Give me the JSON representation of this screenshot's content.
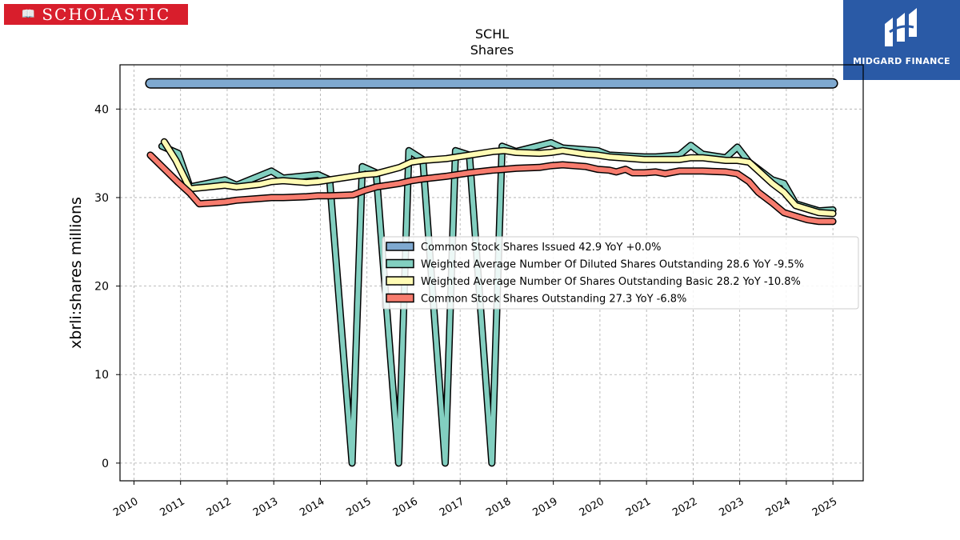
{
  "branding": {
    "left_logo_text": "SCHOLASTIC",
    "right_logo_text": "MIDGARD FINANCE"
  },
  "colors": {
    "issued": "#7fa9d0",
    "diluted": "#82cfc0",
    "basic": "#fffbb4",
    "outstanding": "#f77c6e"
  },
  "chart_data": {
    "type": "line",
    "title": "SCHL",
    "subtitle": "Shares",
    "ylabel": "xbrli:shares millions",
    "xlabel": "",
    "ylim": [
      -2,
      45
    ],
    "xlim": [
      2009.7,
      2025.65
    ],
    "yticks": [
      0,
      10,
      20,
      30,
      40
    ],
    "xticks": [
      "2010",
      "2011",
      "2012",
      "2013",
      "2014",
      "2015",
      "2016",
      "2017",
      "2018",
      "2019",
      "2020",
      "2021",
      "2022",
      "2023",
      "2024",
      "2025"
    ],
    "grid": true,
    "legend_position": "center-right",
    "series": [
      {
        "name": "Common Stock Shares Issued",
        "legend_label": "Common Stock Shares Issued  42.9 YoY +0.0%",
        "color_key": "issued",
        "width": 10,
        "x": [
          2010.35,
          2025.0
        ],
        "y": [
          42.9,
          42.9
        ]
      },
      {
        "name": "Weighted Average Number Of Diluted Shares Outstanding",
        "legend_label": "Weighted Average Number Of Diluted Shares Outstanding  28.6 YoY -9.5%",
        "color_key": "diluted",
        "width": 6,
        "x": [
          2010.6,
          2010.95,
          2011.2,
          2011.95,
          2012.2,
          2012.95,
          2013.2,
          2013.95,
          2014.2,
          2014.68,
          2014.9,
          2015.2,
          2015.68,
          2015.9,
          2016.2,
          2016.68,
          2016.9,
          2017.2,
          2017.68,
          2017.9,
          2018.2,
          2018.95,
          2019.2,
          2019.95,
          2020.2,
          2020.95,
          2021.2,
          2021.7,
          2021.95,
          2022.2,
          2022.7,
          2022.95,
          2023.2,
          2023.7,
          2023.95,
          2024.2,
          2024.7,
          2025.0
        ],
        "y": [
          35.8,
          35.0,
          31.2,
          32.0,
          31.4,
          33.0,
          32.2,
          32.6,
          32.0,
          0,
          33.5,
          32.8,
          0,
          35.3,
          34.3,
          0,
          35.3,
          34.8,
          0,
          35.8,
          35.2,
          36.2,
          35.6,
          35.3,
          34.8,
          34.6,
          34.6,
          34.8,
          35.9,
          34.9,
          34.5,
          35.7,
          34.0,
          32.0,
          31.6,
          29.3,
          28.5,
          28.6
        ]
      },
      {
        "name": "Weighted Average Number Of Shares Outstanding Basic",
        "legend_label": "Weighted Average Number Of Shares Outstanding Basic  28.2 YoY -10.8%",
        "color_key": "basic",
        "width": 6,
        "x": [
          2010.65,
          2010.9,
          2011.2,
          2011.6,
          2011.95,
          2012.2,
          2012.7,
          2012.95,
          2013.2,
          2013.7,
          2013.95,
          2014.2,
          2014.7,
          2014.95,
          2015.2,
          2015.7,
          2015.95,
          2016.2,
          2016.7,
          2016.95,
          2017.2,
          2017.7,
          2017.95,
          2018.2,
          2018.7,
          2018.95,
          2019.2,
          2019.7,
          2019.95,
          2020.2,
          2020.7,
          2020.95,
          2021.2,
          2021.7,
          2021.95,
          2022.2,
          2022.7,
          2022.95,
          2023.2,
          2023.7,
          2023.95,
          2024.2,
          2024.7,
          2025.0
        ],
        "y": [
          36.3,
          34.2,
          31.0,
          31.2,
          31.4,
          31.2,
          31.5,
          31.8,
          31.9,
          31.7,
          31.8,
          32.0,
          32.4,
          32.6,
          32.7,
          33.4,
          34.0,
          34.2,
          34.4,
          34.6,
          34.8,
          35.2,
          35.3,
          35.1,
          35.0,
          35.1,
          35.3,
          34.9,
          34.8,
          34.6,
          34.4,
          34.3,
          34.3,
          34.3,
          34.5,
          34.5,
          34.2,
          34.2,
          34.0,
          31.6,
          30.6,
          29.1,
          28.3,
          28.2
        ]
      },
      {
        "name": "Common Stock Shares Outstanding",
        "legend_label": "Common Stock Shares Outstanding  27.3 YoY -6.8%",
        "color_key": "outstanding",
        "width": 6,
        "x": [
          2010.35,
          2010.7,
          2010.95,
          2011.2,
          2011.4,
          2011.7,
          2011.95,
          2012.2,
          2012.7,
          2012.95,
          2013.2,
          2013.7,
          2013.95,
          2014.2,
          2014.7,
          2014.95,
          2015.2,
          2015.7,
          2015.95,
          2016.2,
          2016.7,
          2016.95,
          2017.2,
          2017.7,
          2017.95,
          2018.2,
          2018.7,
          2018.95,
          2019.2,
          2019.7,
          2019.95,
          2020.2,
          2020.35,
          2020.55,
          2020.7,
          2020.95,
          2021.2,
          2021.4,
          2021.7,
          2021.95,
          2022.2,
          2022.7,
          2022.95,
          2023.2,
          2023.4,
          2023.7,
          2023.95,
          2024.2,
          2024.45,
          2024.7,
          2025.0
        ],
        "y": [
          34.8,
          33.0,
          31.7,
          30.5,
          29.3,
          29.4,
          29.5,
          29.7,
          29.9,
          30.0,
          30.0,
          30.1,
          30.2,
          30.2,
          30.3,
          30.8,
          31.2,
          31.6,
          31.9,
          32.1,
          32.4,
          32.6,
          32.8,
          33.1,
          33.2,
          33.3,
          33.4,
          33.6,
          33.7,
          33.5,
          33.2,
          33.1,
          32.9,
          33.2,
          32.8,
          32.8,
          32.9,
          32.7,
          33.0,
          33.0,
          33.0,
          32.9,
          32.7,
          31.8,
          30.6,
          29.4,
          28.3,
          27.9,
          27.5,
          27.3,
          27.3
        ]
      }
    ]
  }
}
